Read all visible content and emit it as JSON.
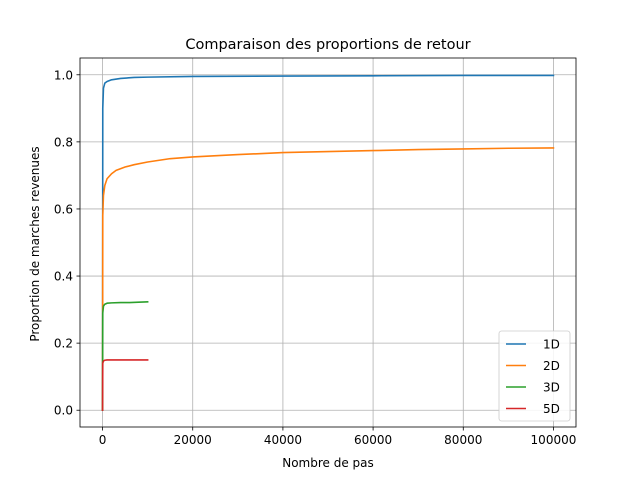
{
  "chart_data": {
    "type": "line",
    "title": "Comparaison des proportions de retour",
    "xlabel": "Nombre de pas",
    "ylabel": "Proportion de marches revenues",
    "xlim": [
      -5000,
      105000
    ],
    "ylim": [
      -0.05,
      1.05
    ],
    "xticks": [
      0,
      20000,
      40000,
      60000,
      80000,
      100000
    ],
    "xtick_labels": [
      "0",
      "20000",
      "40000",
      "60000",
      "80000",
      "100000"
    ],
    "yticks": [
      0.0,
      0.2,
      0.4,
      0.6,
      0.8,
      1.0
    ],
    "ytick_labels": [
      "0.0",
      "0.2",
      "0.4",
      "0.6",
      "0.8",
      "1.0"
    ],
    "grid": true,
    "legend_position": "bottom-right",
    "series": [
      {
        "name": "1D",
        "color": "#1f77b4",
        "x": [
          0,
          50,
          200,
          500,
          1000,
          2000,
          4000,
          7000,
          10000,
          20000,
          40000,
          60000,
          80000,
          100000
        ],
        "y": [
          0.0,
          0.9,
          0.96,
          0.975,
          0.98,
          0.985,
          0.989,
          0.992,
          0.993,
          0.995,
          0.996,
          0.997,
          0.998,
          0.998
        ]
      },
      {
        "name": "2D",
        "color": "#ff7f0e",
        "x": [
          0,
          50,
          200,
          500,
          1000,
          2000,
          3000,
          5000,
          7000,
          10000,
          15000,
          20000,
          30000,
          40000,
          50000,
          60000,
          70000,
          80000,
          90000,
          100000
        ],
        "y": [
          0.0,
          0.58,
          0.64,
          0.67,
          0.69,
          0.705,
          0.715,
          0.725,
          0.732,
          0.74,
          0.75,
          0.755,
          0.762,
          0.768,
          0.771,
          0.774,
          0.777,
          0.779,
          0.781,
          0.782
        ]
      },
      {
        "name": "3D",
        "color": "#2ca02c",
        "x": [
          0,
          50,
          200,
          500,
          1000,
          2000,
          4000,
          6000,
          8000,
          10000
        ],
        "y": [
          0.0,
          0.29,
          0.31,
          0.316,
          0.319,
          0.32,
          0.321,
          0.321,
          0.322,
          0.323
        ]
      },
      {
        "name": "5D",
        "color": "#d62728",
        "x": [
          0,
          50,
          200,
          500,
          1000,
          3000,
          6000,
          10000
        ],
        "y": [
          0.0,
          0.14,
          0.147,
          0.149,
          0.15,
          0.15,
          0.15,
          0.15
        ]
      }
    ]
  }
}
